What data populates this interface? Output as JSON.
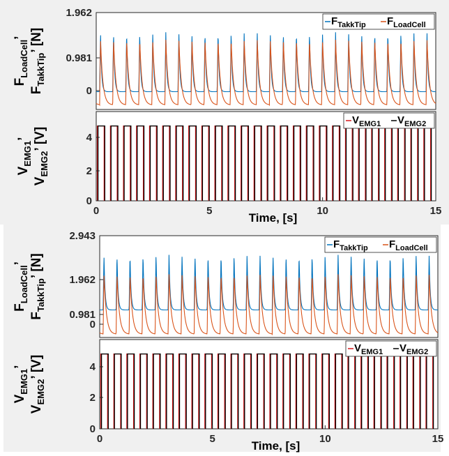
{
  "chart_data": [
    {
      "type": "line",
      "panel": "upper-force",
      "ylabel": {
        "line1_main": "F",
        "line1_sub": "LoadCell",
        "line1_tail": "’",
        "line2_main": "F",
        "line2_sub": "TakkTip",
        "line2_tail": "’ [N]"
      },
      "yticks": [
        "1.962",
        "0.981",
        "0"
      ],
      "ylim": [
        -0.22,
        1.962
      ],
      "xlim": [
        0,
        15
      ],
      "pulses": 26,
      "series": [
        {
          "name_main": "F",
          "name_sub": "TakkTip",
          "color": "#0072BD",
          "peak": 1.52,
          "baseline": 0.18
        },
        {
          "name_main": "F",
          "name_sub": "LoadCell",
          "color": "#D95319",
          "peak": 1.35,
          "baseline": -0.12
        }
      ],
      "legend_position": "top-right"
    },
    {
      "type": "line",
      "panel": "upper-emg",
      "ylabel": {
        "line1_main": "V",
        "line1_sub": "EMG1",
        "line1_tail": "’",
        "line2_main": "V",
        "line2_sub": "EMG2",
        "line2_tail": "’ [V]"
      },
      "yticks": [
        "4",
        "2",
        "0"
      ],
      "ylim": [
        0,
        5.6
      ],
      "xlim": [
        0,
        15
      ],
      "xticks": [
        "0",
        "5",
        "10",
        "15"
      ],
      "xlabel": "Time, [s]",
      "pulses": 26,
      "pulse_level": 4.7,
      "series": [
        {
          "name_main": "V",
          "name_sub": "EMG1",
          "color": "#D7191C"
        },
        {
          "name_main": "V",
          "name_sub": "EMG2",
          "color": "#000000"
        }
      ],
      "legend_position": "top-right"
    },
    {
      "type": "line",
      "panel": "lower-force",
      "ylabel": {
        "line1_main": "F",
        "line1_sub": "LoadCell",
        "line1_tail": "’",
        "line2_main": "F",
        "line2_sub": "TakkTip",
        "line2_tail": "’ [N]"
      },
      "yticks": [
        "2.943",
        "1.962",
        "0.981",
        "0"
      ],
      "ylim": [
        -0.2,
        2.943
      ],
      "xlim": [
        0,
        15
      ],
      "pulses": 26,
      "series": [
        {
          "name_main": "F",
          "name_sub": "TakkTip",
          "color": "#0072BD",
          "peak": 2.35,
          "baseline": 0.65
        },
        {
          "name_main": "F",
          "name_sub": "LoadCell",
          "color": "#D95319",
          "peak": 1.75,
          "baseline": -0.1
        }
      ],
      "legend_position": "top-right"
    },
    {
      "type": "line",
      "panel": "lower-emg",
      "ylabel": {
        "line1_main": "V",
        "line1_sub": "EMG1",
        "line1_tail": "’",
        "line2_main": "V",
        "line2_sub": "EMG2",
        "line2_tail": "’ [V]"
      },
      "yticks": [
        "4",
        "2",
        "0"
      ],
      "ylim": [
        0,
        5.6
      ],
      "xlim": [
        0,
        15
      ],
      "xticks": [
        "0",
        "5",
        "10",
        "15"
      ],
      "xlabel": "Time, [s]",
      "pulses": 26,
      "pulse_level": 4.7,
      "series": [
        {
          "name_main": "V",
          "name_sub": "EMG1",
          "color": "#D7191C"
        },
        {
          "name_main": "V",
          "name_sub": "EMG2",
          "color": "#000000"
        }
      ],
      "legend_position": "top-right"
    }
  ]
}
